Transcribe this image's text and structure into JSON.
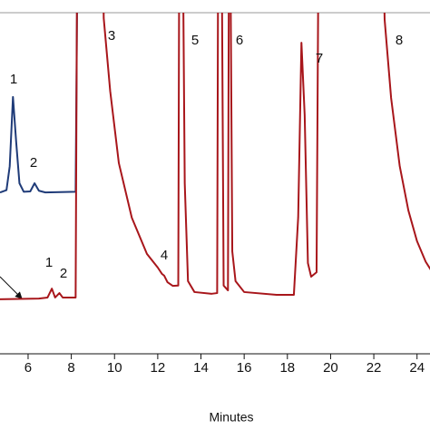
{
  "chart_data": {
    "type": "line",
    "x_label": "Minutes",
    "xlim": [
      4.7,
      24.6
    ],
    "xticks": [
      6,
      8,
      10,
      12,
      14,
      16,
      18,
      20,
      22,
      24
    ],
    "ylim": [
      0,
      100
    ],
    "series": [
      {
        "name": "blue trace",
        "color": "#1f3b78",
        "x": [
          4.7,
          5.0,
          5.15,
          5.3,
          5.45,
          5.6,
          5.8,
          6.1,
          6.3,
          6.5,
          6.8,
          8.2,
          8.3
        ],
        "values": [
          47.3,
          48,
          55,
          75.3,
          62,
          50,
          47.5,
          47.6,
          50,
          47.8,
          47.3,
          47.5,
          130
        ]
      },
      {
        "name": "red trace",
        "color": "#a8161b",
        "x": [
          4.7,
          6.5,
          6.9,
          7.1,
          7.25,
          7.45,
          7.6,
          8.2,
          8.28,
          9.45,
          9.5,
          9.8,
          10.2,
          10.8,
          11.5,
          12.0,
          12.2,
          12.3,
          12.45,
          12.7,
          12.95,
          13.0,
          13.15,
          13.25,
          13.4,
          13.7,
          14.5,
          14.75,
          14.8,
          14.95,
          15.05,
          15.25,
          15.3,
          15.35,
          15.45,
          15.6,
          16.0,
          17.5,
          18.3,
          18.5,
          18.65,
          18.8,
          18.95,
          19.1,
          19.35,
          19.45,
          22.4,
          22.5,
          22.8,
          23.2,
          23.6,
          24.0,
          24.4,
          24.7
        ],
        "values": [
          16.0,
          16.2,
          16.5,
          19.1,
          16.5,
          17.8,
          16.5,
          16.5,
          130,
          130,
          98.4,
          77,
          55.9,
          39.9,
          29.3,
          25.3,
          23.4,
          22.9,
          21.0,
          19.9,
          20,
          130,
          130,
          50,
          21.3,
          18.1,
          17.6,
          17.8,
          130,
          130,
          20,
          18.6,
          130,
          130,
          30,
          21.3,
          18.1,
          17.3,
          17.3,
          40,
          91.2,
          70,
          26.6,
          22.6,
          23.9,
          130,
          130,
          98,
          75,
          55,
          42,
          33,
          27,
          24
        ]
      }
    ],
    "annotations": [
      "1",
      "2",
      "3",
      "4",
      "5",
      "6",
      "7",
      "8",
      "1",
      "2"
    ]
  }
}
